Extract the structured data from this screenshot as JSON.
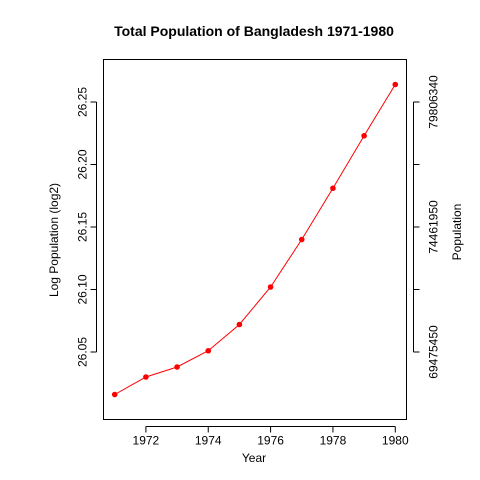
{
  "chart_data": {
    "type": "line",
    "title": "Total Population of Bangladesh 1971-1980",
    "xlabel": "Year",
    "ylabel": "Log  Population (log2)",
    "ylabel_right": "Population",
    "x": [
      1971,
      1972,
      1973,
      1974,
      1975,
      1976,
      1977,
      1978,
      1979,
      1980
    ],
    "series": [
      {
        "values": [
          26.016,
          26.03,
          26.038,
          26.051,
          26.072,
          26.102,
          26.14,
          26.181,
          26.223,
          26.264
        ]
      }
    ],
    "xlim": [
      1970.64,
      1980.36
    ],
    "ylim": [
      25.996,
      26.284
    ],
    "x_ticks": [
      1972,
      1974,
      1976,
      1978,
      1980
    ],
    "x_tick_labels": [
      "1972",
      "1974",
      "1976",
      "1978",
      "1980"
    ],
    "y_ticks": [
      26.05,
      26.1,
      26.15,
      26.2,
      26.25
    ],
    "y_tick_labels": [
      "26.05",
      "26.10",
      "26.15",
      "26.20",
      "26.25"
    ],
    "y_right_ticks": [
      26.05,
      26.1,
      26.15,
      26.2,
      26.25
    ],
    "y_right_tick_labels": [
      "69475450",
      "",
      "74461950",
      "",
      "79806340"
    ],
    "colors": {
      "series": "#ff0000",
      "axis": "#000000"
    },
    "grid": false
  }
}
